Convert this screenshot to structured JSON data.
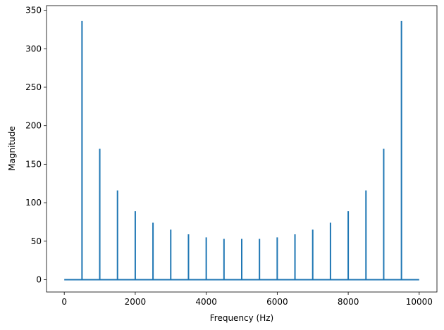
{
  "chart_data": {
    "type": "line",
    "xlabel": "Frequency (Hz)",
    "ylabel": "Magnitude",
    "x": [
      0,
      500,
      500,
      500,
      1000,
      1000,
      1000,
      1500,
      1500,
      1500,
      2000,
      2000,
      2000,
      2500,
      2500,
      2500,
      3000,
      3000,
      3000,
      3500,
      3500,
      3500,
      4000,
      4000,
      4000,
      4500,
      4500,
      4500,
      5000,
      5000,
      5000,
      5500,
      5500,
      5500,
      6000,
      6000,
      6000,
      6500,
      6500,
      6500,
      7000,
      7000,
      7000,
      7500,
      7500,
      7500,
      8000,
      8000,
      8000,
      8500,
      8500,
      8500,
      9000,
      9000,
      9000,
      9500,
      9500,
      9500,
      10000
    ],
    "values": [
      0,
      0,
      336,
      0,
      0,
      170,
      0,
      0,
      116,
      0,
      0,
      89,
      0,
      0,
      74,
      0,
      0,
      65,
      0,
      0,
      59,
      0,
      0,
      55,
      0,
      0,
      53,
      0,
      0,
      53,
      0,
      0,
      53,
      0,
      0,
      55,
      0,
      0,
      59,
      0,
      0,
      65,
      0,
      0,
      74,
      0,
      0,
      89,
      0,
      0,
      116,
      0,
      0,
      170,
      0,
      0,
      336,
      0,
      0
    ],
    "color": "#1f77b4",
    "xlim": [
      -500,
      10500
    ],
    "xticks": [
      0,
      2000,
      4000,
      6000,
      8000,
      10000
    ],
    "ylim": [
      -16,
      356
    ],
    "yticks": [
      0,
      50,
      100,
      150,
      200,
      250,
      300,
      350
    ],
    "grid": false
  }
}
